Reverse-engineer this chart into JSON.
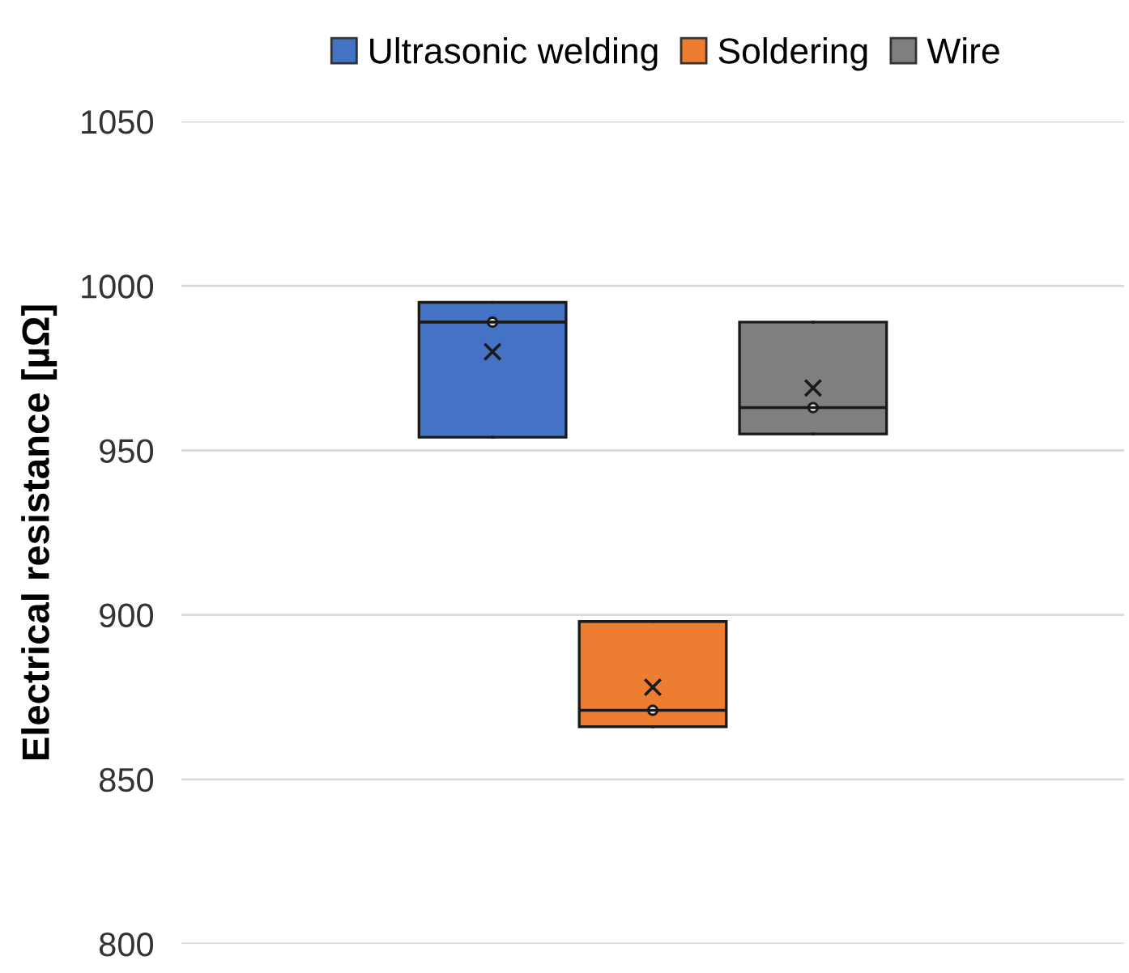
{
  "chart_data": {
    "type": "box",
    "ylabel": "Electrical resistance [µΩ]",
    "categories": [
      null
    ],
    "series": [
      {
        "name": "Ultrasonic welding",
        "color": "#4472c4",
        "boxes": [
          {
            "low": 954,
            "q1": 954,
            "median": 989,
            "q3": 995,
            "high": 995,
            "mean": 980
          }
        ]
      },
      {
        "name": "Soldering",
        "color": "#ed7d31",
        "boxes": [
          {
            "low": 866,
            "q1": 866,
            "median": 871,
            "q3": 898,
            "high": 898,
            "mean": 878
          }
        ]
      },
      {
        "name": "Wire",
        "color": "#7f7f7f",
        "boxes": [
          {
            "low": 955,
            "q1": 955,
            "median": 963,
            "q3": 989,
            "high": 989,
            "mean": 969
          }
        ]
      }
    ],
    "ylim": [
      800,
      1050
    ],
    "yticks": [
      800,
      850,
      900,
      950,
      1000,
      1050
    ],
    "grid": "y",
    "legend": "top"
  }
}
